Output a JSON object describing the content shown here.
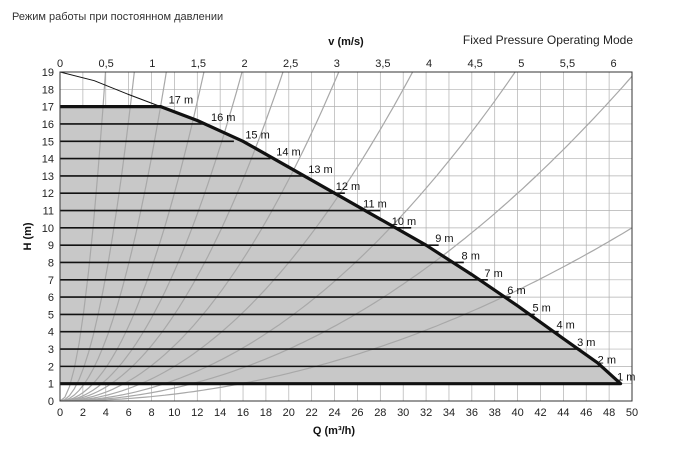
{
  "header": {
    "ru_title": "Режим работы при постоянном давлении",
    "mode_title": "Fixed Pressure Operating Mode"
  },
  "chart_data": {
    "type": "line",
    "title": "Fixed Pressure Operating Mode",
    "xlabel": "Q (m³/h)",
    "ylabel": "H (m)",
    "x2label": "v (m/s)",
    "xlim": [
      0,
      50
    ],
    "ylim": [
      0,
      19
    ],
    "x2lim": [
      0,
      6.2
    ],
    "x_ticks": [
      0,
      2,
      4,
      6,
      8,
      10,
      12,
      14,
      16,
      18,
      20,
      22,
      24,
      26,
      28,
      30,
      32,
      34,
      36,
      38,
      40,
      42,
      44,
      46,
      48,
      50
    ],
    "y_ticks": [
      0,
      1,
      2,
      3,
      4,
      5,
      6,
      7,
      8,
      9,
      10,
      11,
      12,
      13,
      14,
      15,
      16,
      17,
      18,
      19
    ],
    "x2_ticks": [
      {
        "value": 0,
        "label": "0"
      },
      {
        "value": 0.5,
        "label": "0,5"
      },
      {
        "value": 1,
        "label": "1"
      },
      {
        "value": 1.5,
        "label": "1,5"
      },
      {
        "value": 2,
        "label": "2"
      },
      {
        "value": 2.5,
        "label": "2,5"
      },
      {
        "value": 3,
        "label": "3"
      },
      {
        "value": 3.5,
        "label": "3,5"
      },
      {
        "value": 4,
        "label": "4"
      },
      {
        "value": 4.5,
        "label": "4,5"
      },
      {
        "value": 5,
        "label": "5"
      },
      {
        "value": 5.5,
        "label": "5,5"
      },
      {
        "value": 6,
        "label": "6"
      }
    ],
    "grid": true,
    "colors": {
      "envelope": "#111111",
      "fill": "#c8c8c8",
      "grid": "#b0b0b0",
      "system_curves": "#a8a8a8",
      "setpoint_lines": "#111111"
    },
    "envelope": {
      "min_head": 1,
      "max_head": 17,
      "max_curve": [
        [
          8.8,
          17
        ],
        [
          12,
          16.2
        ],
        [
          16,
          15
        ],
        [
          20,
          13.5
        ],
        [
          24,
          12
        ],
        [
          28,
          10.5
        ],
        [
          32,
          9
        ],
        [
          36,
          7.3
        ],
        [
          40,
          5.5
        ],
        [
          44,
          3.6
        ],
        [
          47,
          2.2
        ],
        [
          49,
          1
        ]
      ]
    },
    "system_curve_coefficients": [
      1.2,
      0.45,
      0.22,
      0.12,
      0.075,
      0.05,
      0.032,
      0.02,
      0.012,
      0.0075,
      0.004
    ],
    "falling_curve": [
      [
        0,
        19
      ],
      [
        3,
        18.5
      ],
      [
        6,
        17.7
      ],
      [
        8.8,
        17
      ]
    ],
    "setpoints": [
      {
        "head": 1,
        "label": "1 m",
        "x_end": 49.0,
        "label_q": 48.7
      },
      {
        "head": 2,
        "label": "2 m",
        "x_end": 47.3,
        "label_q": 47.0
      },
      {
        "head": 3,
        "label": "3 m",
        "x_end": 45.5,
        "label_q": 45.2
      },
      {
        "head": 4,
        "label": "4 m",
        "x_end": 43.6,
        "label_q": 43.4
      },
      {
        "head": 5,
        "label": "5 m",
        "x_end": 41.5,
        "label_q": 41.3
      },
      {
        "head": 6,
        "label": "6 m",
        "x_end": 39.4,
        "label_q": 39.1
      },
      {
        "head": 7,
        "label": "7 m",
        "x_end": 37.4,
        "label_q": 37.1
      },
      {
        "head": 8,
        "label": "8 m",
        "x_end": 35.3,
        "label_q": 35.1
      },
      {
        "head": 9,
        "label": "9 m",
        "x_end": 33.1,
        "label_q": 32.8
      },
      {
        "head": 10,
        "label": "10 m",
        "x_end": 30.7,
        "label_q": 29.0
      },
      {
        "head": 11,
        "label": "11 m",
        "x_end": 28.0,
        "label_q": 26.5
      },
      {
        "head": 12,
        "label": "12 m",
        "x_end": 24.9,
        "label_q": 24.1
      },
      {
        "head": 13,
        "label": "13 m",
        "x_end": 21.5,
        "label_q": 21.7
      },
      {
        "head": 14,
        "label": "14 m",
        "x_end": 18.4,
        "label_q": 18.9
      },
      {
        "head": 15,
        "label": "15 m",
        "x_end": 15.2,
        "label_q": 16.2
      },
      {
        "head": 16,
        "label": "16 m",
        "x_end": 12.6,
        "label_q": 13.2
      },
      {
        "head": 17,
        "label": "17 m",
        "x_end": 8.8,
        "label_q": 9.5
      }
    ]
  }
}
